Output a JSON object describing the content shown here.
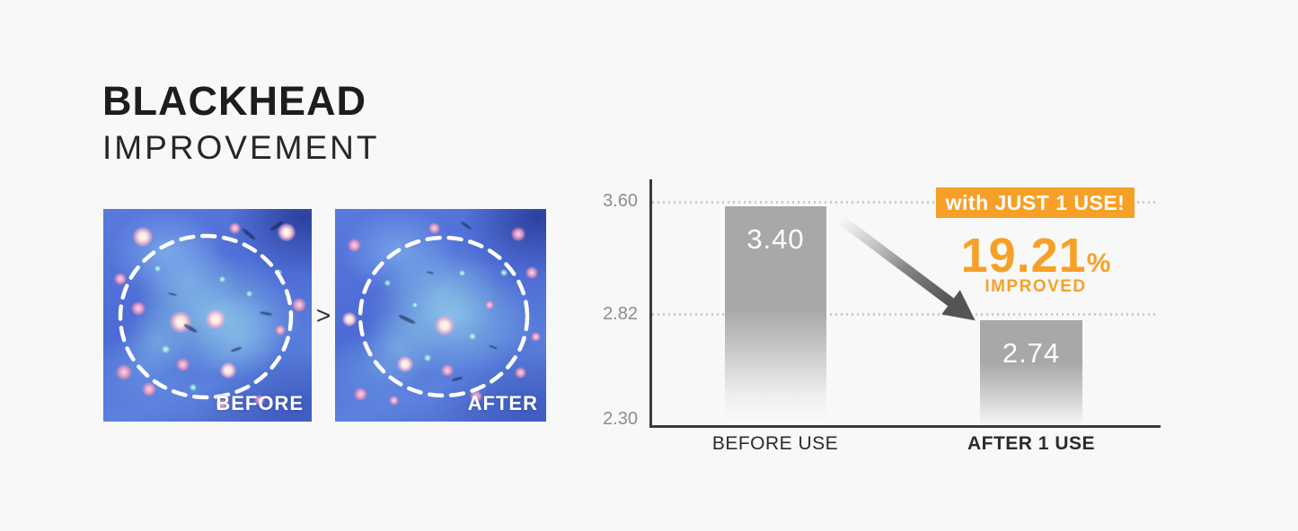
{
  "page": {
    "background": "#f8f8f8"
  },
  "header": {
    "title": "BLACKHEAD",
    "subtitle": "IMPROVEMENT"
  },
  "comparison": {
    "before_label": "BEFORE",
    "after_label": "AFTER",
    "separator": ">"
  },
  "chart_data": {
    "type": "bar",
    "categories": [
      "BEFORE USE",
      "AFTER 1 USE"
    ],
    "values": [
      3.4,
      2.74
    ],
    "value_labels": [
      "3.40",
      "2.74"
    ],
    "yticks": [
      "3.60",
      "2.82",
      "2.30"
    ],
    "ylim": [
      2.3,
      3.6
    ],
    "grid": {
      "horizontal_dotted_at": [
        3.6,
        2.82
      ]
    },
    "legend_position": "none",
    "annotations": {
      "badge_label": "with JUST 1 USE!",
      "percent_value": "19.21",
      "percent_sign": "%",
      "improved_label": "IMPROVED",
      "arrow": "gradient arrow pointing down-right from BEFORE USE bar to AFTER 1 USE bar"
    },
    "colors": {
      "accent_orange": "#F6A028",
      "bar_gray": "#A8A8AA",
      "arrow_dark": "#545456",
      "axis_dark": "#3B3B3B",
      "tick_gray": "#8D8D8D",
      "value_text": "#FFFFFF"
    }
  }
}
